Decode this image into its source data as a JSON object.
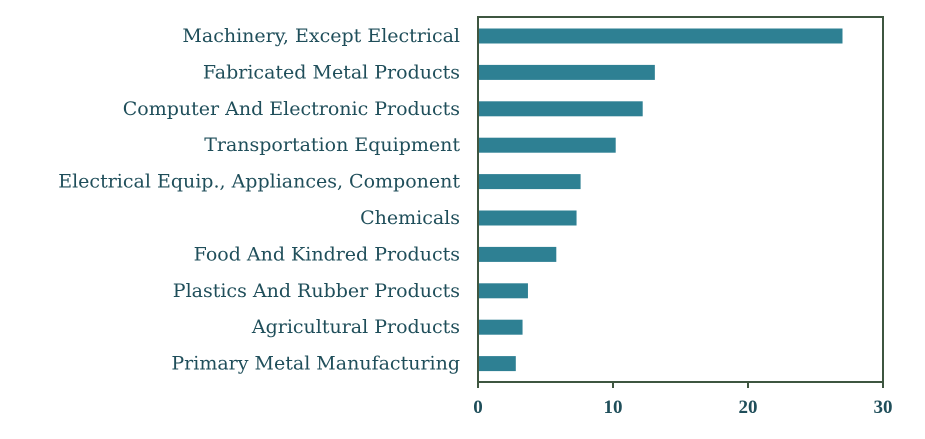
{
  "colors": {
    "bar": "#2e8093",
    "frame": "#3e5640",
    "text": "#1f4e5a"
  },
  "chart_data": {
    "type": "bar",
    "orientation": "horizontal",
    "title": "",
    "xlabel": "",
    "ylabel": "",
    "categories": [
      "Machinery, Except Electrical",
      "Fabricated Metal Products",
      "Computer And Electronic Products",
      "Transportation Equipment",
      "Electrical Equip., Appliances, Component",
      "Chemicals",
      "Food And Kindred Products",
      "Plastics And Rubber Products",
      "Agricultural Products",
      "Primary Metal Manufacturing"
    ],
    "values": [
      27.0,
      13.1,
      12.2,
      10.2,
      7.6,
      7.3,
      5.8,
      3.7,
      3.3,
      2.8
    ],
    "xlim": [
      0,
      30
    ],
    "xticks": [
      0,
      10,
      20,
      30
    ],
    "grid": false,
    "legend": "none"
  }
}
